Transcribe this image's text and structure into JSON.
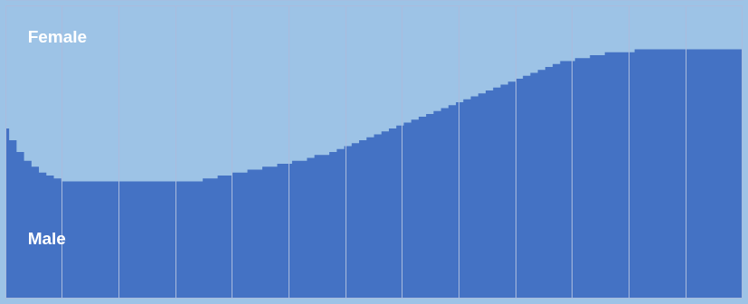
{
  "chart_data": {
    "type": "area",
    "series": [
      {
        "name": "Male",
        "color": "#4472C4",
        "values": [
          58,
          54,
          50,
          47,
          45,
          43,
          42,
          41,
          40,
          40,
          40,
          40,
          40,
          40,
          40,
          40,
          40,
          40,
          40,
          40,
          40,
          40,
          40,
          40,
          40,
          40,
          40,
          41,
          41,
          42,
          42,
          43,
          43,
          44,
          44,
          45,
          45,
          46,
          46,
          47,
          47,
          48,
          49,
          49,
          50,
          51,
          52,
          53,
          54,
          55,
          56,
          57,
          58,
          59,
          60,
          61,
          62,
          63,
          64,
          65,
          66,
          67,
          68,
          69,
          70,
          71,
          72,
          73,
          74,
          75,
          76,
          77,
          78,
          79,
          80,
          81,
          81,
          82,
          82,
          83,
          83,
          84,
          84,
          84,
          84,
          85,
          85,
          85,
          85,
          85,
          85,
          85,
          85,
          85,
          85,
          85,
          85,
          85,
          85,
          85
        ]
      }
    ],
    "color": "#9DC3E6",
    "xlim": [
      0,
      99
    ],
    "ylim": [
      0,
      100
    ],
    "xticks": [
      7.615384615384615,
      15.23076923076923,
      22.846153846153847,
      30.46153846153846,
      38.07692307692308,
      45.69230769230769,
      53.30769230769231,
      60.92307692307692,
      68.53846153846153,
      76.15384615384616,
      83.76923076923077,
      91.38461538461539
    ],
    "grid": true,
    "tick_labels": false,
    "annotations": [
      {
        "text": "Female",
        "x": 3,
        "y": 92,
        "color": "#FFFFFF"
      },
      {
        "text": "Male",
        "x": 3,
        "y": 20,
        "color": "#FFFFFF"
      }
    ]
  }
}
